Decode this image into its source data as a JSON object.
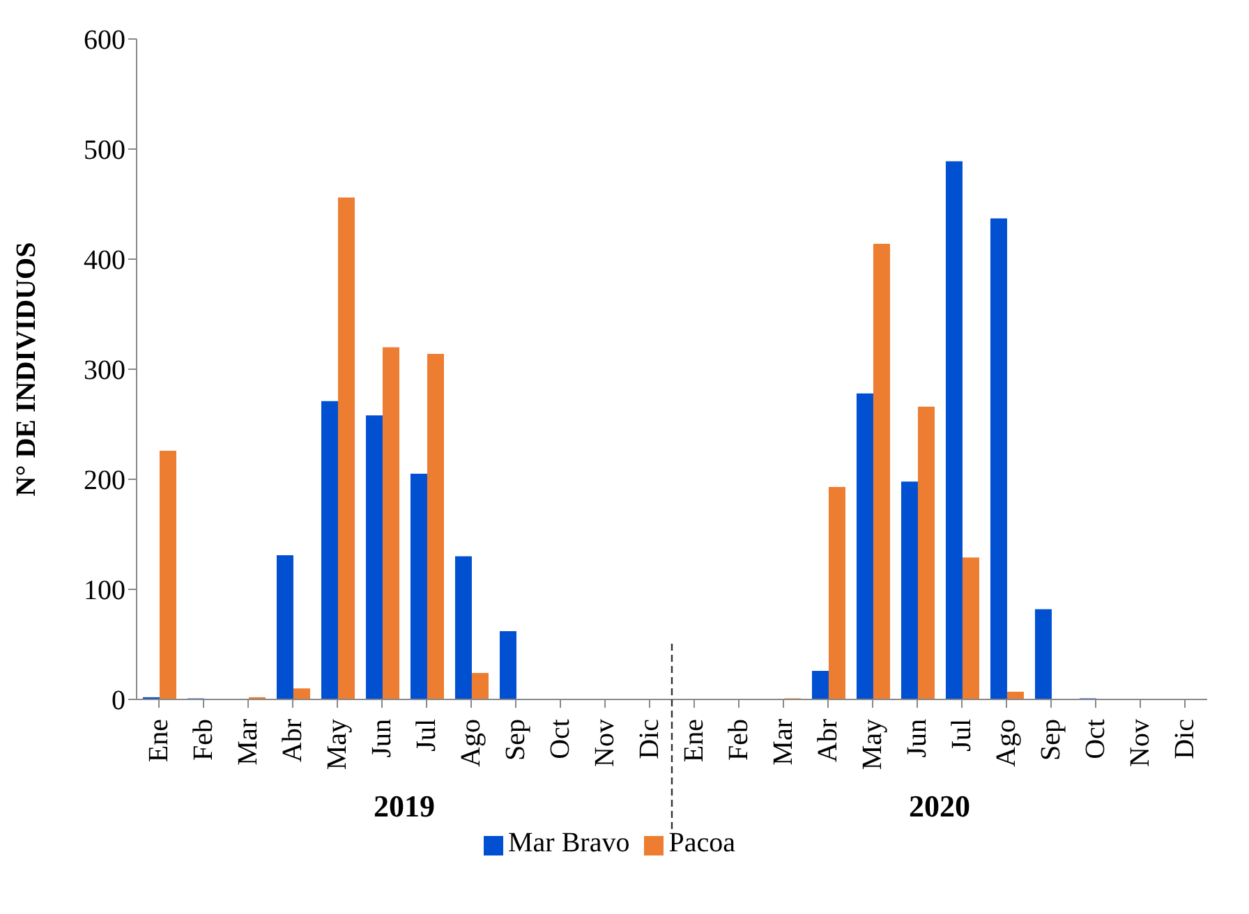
{
  "chart_data": {
    "type": "bar",
    "ylabel": "N° DE INDIVIDUOS",
    "categories": [
      "Ene",
      "Feb",
      "Mar",
      "Abr",
      "May",
      "Jun",
      "Jul",
      "Ago",
      "Sep",
      "Oct",
      "Nov",
      "Dic",
      "Ene",
      "Feb",
      "Mar",
      "Abr",
      "May",
      "Jun",
      "Jul",
      "Ago",
      "Sep",
      "Oct",
      "Nov",
      "Dic"
    ],
    "series": [
      {
        "name": "Mar Bravo",
        "color": "#0250d2",
        "values": [
          2,
          1,
          0,
          131,
          271,
          258,
          205,
          130,
          62,
          0,
          0,
          0,
          0,
          0,
          0,
          26,
          278,
          198,
          489,
          437,
          82,
          1,
          0,
          0
        ]
      },
      {
        "name": "Pacoa",
        "color": "#ed7d31",
        "values": [
          226,
          0,
          2,
          10,
          456,
          320,
          314,
          24,
          0,
          0,
          0,
          0,
          0,
          0,
          1,
          193,
          414,
          266,
          129,
          7,
          0,
          0,
          0,
          0
        ]
      }
    ],
    "annotations": [
      "2019",
      "2020"
    ],
    "ylim": [
      0,
      600
    ],
    "yticks": [
      0,
      100,
      200,
      300,
      400,
      500,
      600
    ],
    "grid": false,
    "legend": "bottom"
  }
}
